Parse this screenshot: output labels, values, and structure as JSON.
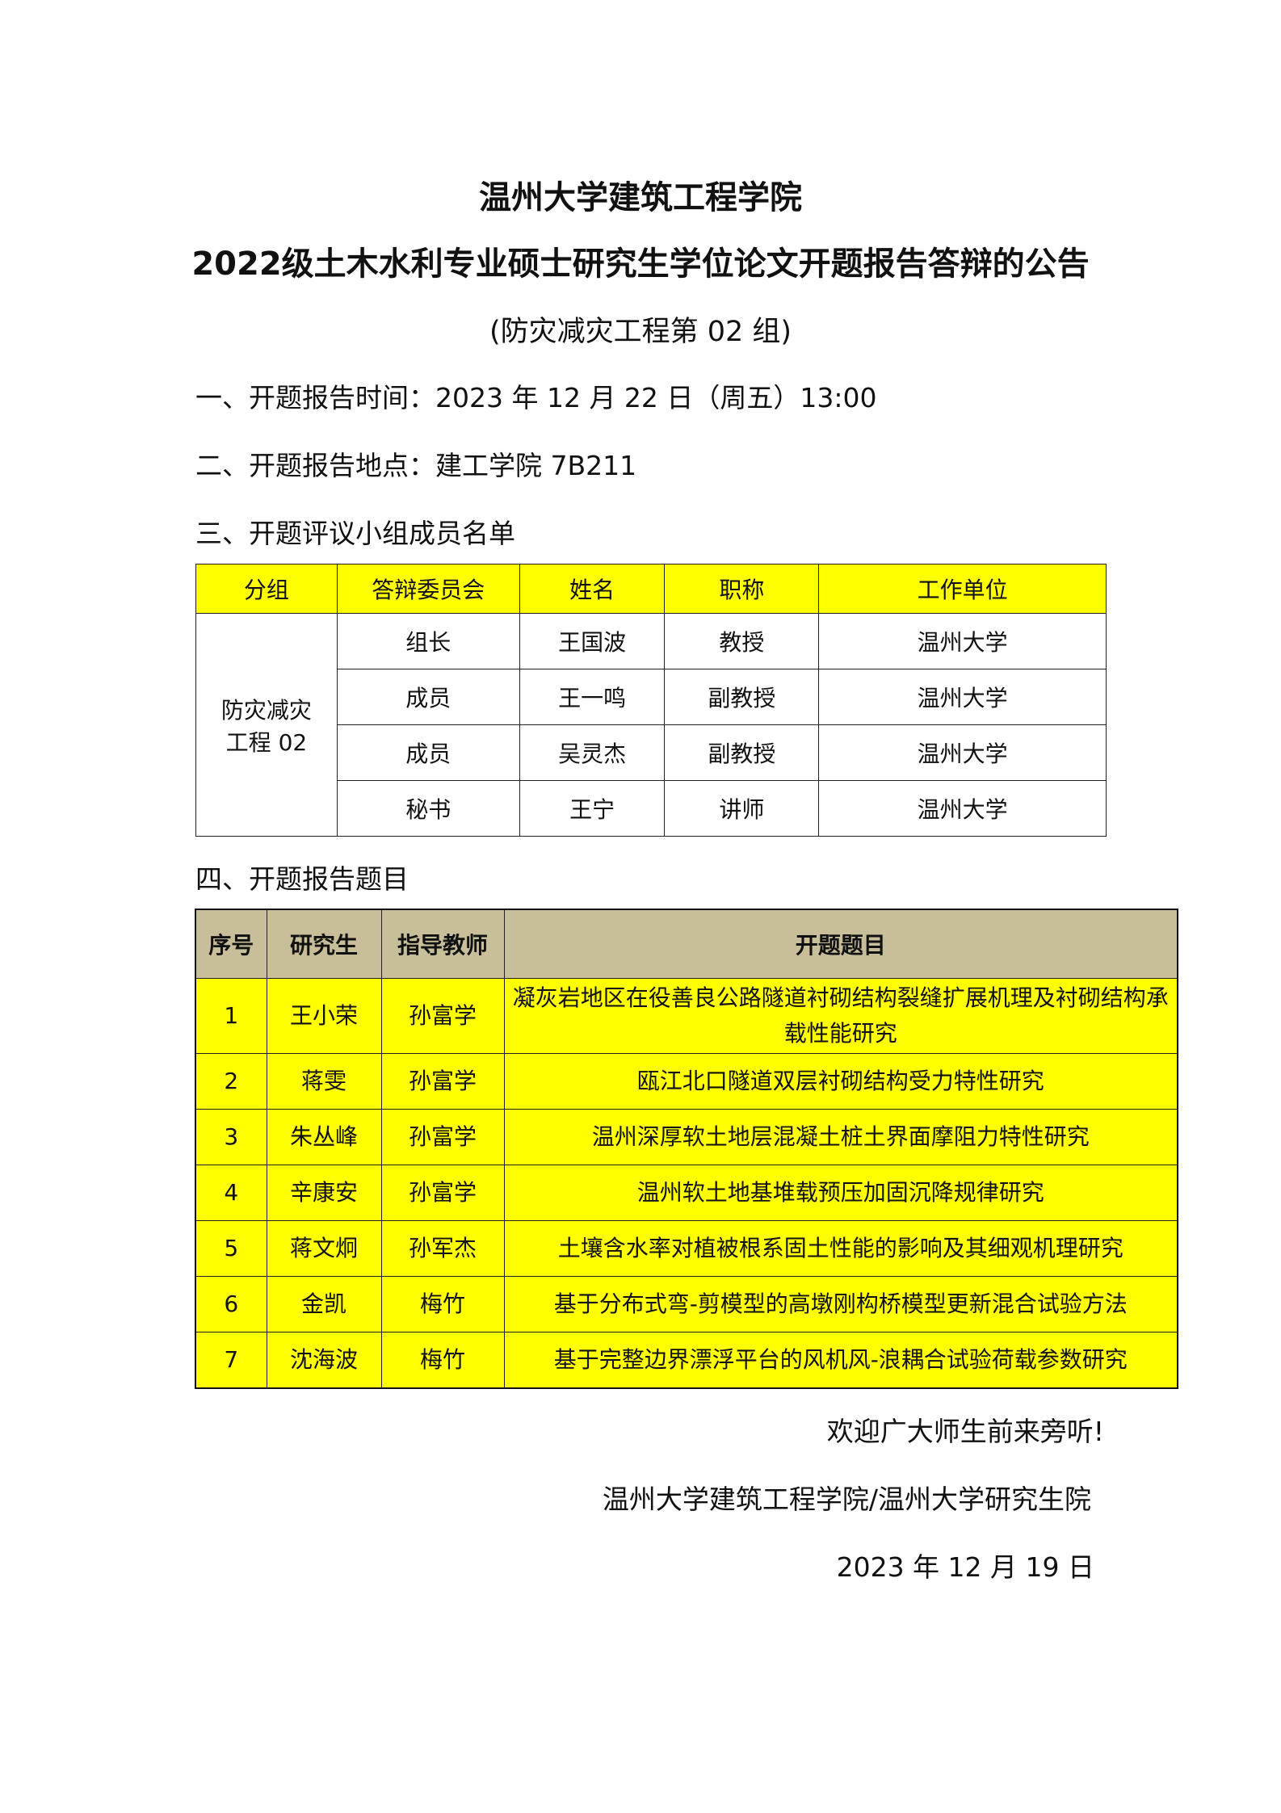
{
  "header": {
    "title": "温州大学建筑工程学院",
    "subtitle": "2022级土木水利专业硕士研究生学位论文开题报告答辩的公告",
    "group": "(防灾减灾工程第 02 组)"
  },
  "sections": {
    "time": "一、开题报告时间：2023 年 12 月 22 日（周五）13:00",
    "place": "二、开题报告地点：建工学院 7B211",
    "committee_heading": "三、开题评议小组成员名单",
    "topics_heading": "四、开题报告题目"
  },
  "committee_table": {
    "headers": [
      "分组",
      "答辩委员会",
      "姓名",
      "职称",
      "工作单位"
    ],
    "group": "防灾减灾工程 02",
    "rows": [
      [
        "组长",
        "王国波",
        "教授",
        "温州大学"
      ],
      [
        "成员",
        "王一鸣",
        "副教授",
        "温州大学"
      ],
      [
        "成员",
        "吴灵杰",
        "副教授",
        "温州大学"
      ],
      [
        "秘书",
        "王宁",
        "讲师",
        "温州大学"
      ]
    ]
  },
  "topics_table": {
    "headers": [
      "序号",
      "研究生",
      "指导教师",
      "开题题目"
    ],
    "rows": [
      [
        "1",
        "王小荣",
        "孙富学",
        "凝灰岩地区在役善良公路隧道衬砌结构裂缝扩展机理及衬砌结构承载性能研究"
      ],
      [
        "2",
        "蒋雯",
        "孙富学",
        "瓯江北口隧道双层衬砌结构受力特性研究"
      ],
      [
        "3",
        "朱丛峰",
        "孙富学",
        "温州深厚软土地层混凝土桩土界面摩阻力特性研究"
      ],
      [
        "4",
        "辛康安",
        "孙富学",
        "温州软土地基堆载预压加固沉降规律研究"
      ],
      [
        "5",
        "蒋文炯",
        "孙军杰",
        "土壤含水率对植被根系固土性能的影响及其细观机理研究"
      ],
      [
        "6",
        "金凯",
        "梅竹",
        "基于分布式弯-剪模型的高墩刚构桥模型更新混合试验方法"
      ],
      [
        "7",
        "沈海波",
        "梅竹",
        "基于完整边界漂浮平台的风机风-浪耦合试验荷载参数研究"
      ]
    ]
  },
  "footer": {
    "welcome": "欢迎广大师生前来旁听!",
    "issuer": "温州大学建筑工程学院/温州大学研究生院",
    "date": "2023 年 12 月 19 日"
  },
  "colors": {
    "highlight": "#ffff00",
    "header_tan": "#c8bf9a"
  }
}
